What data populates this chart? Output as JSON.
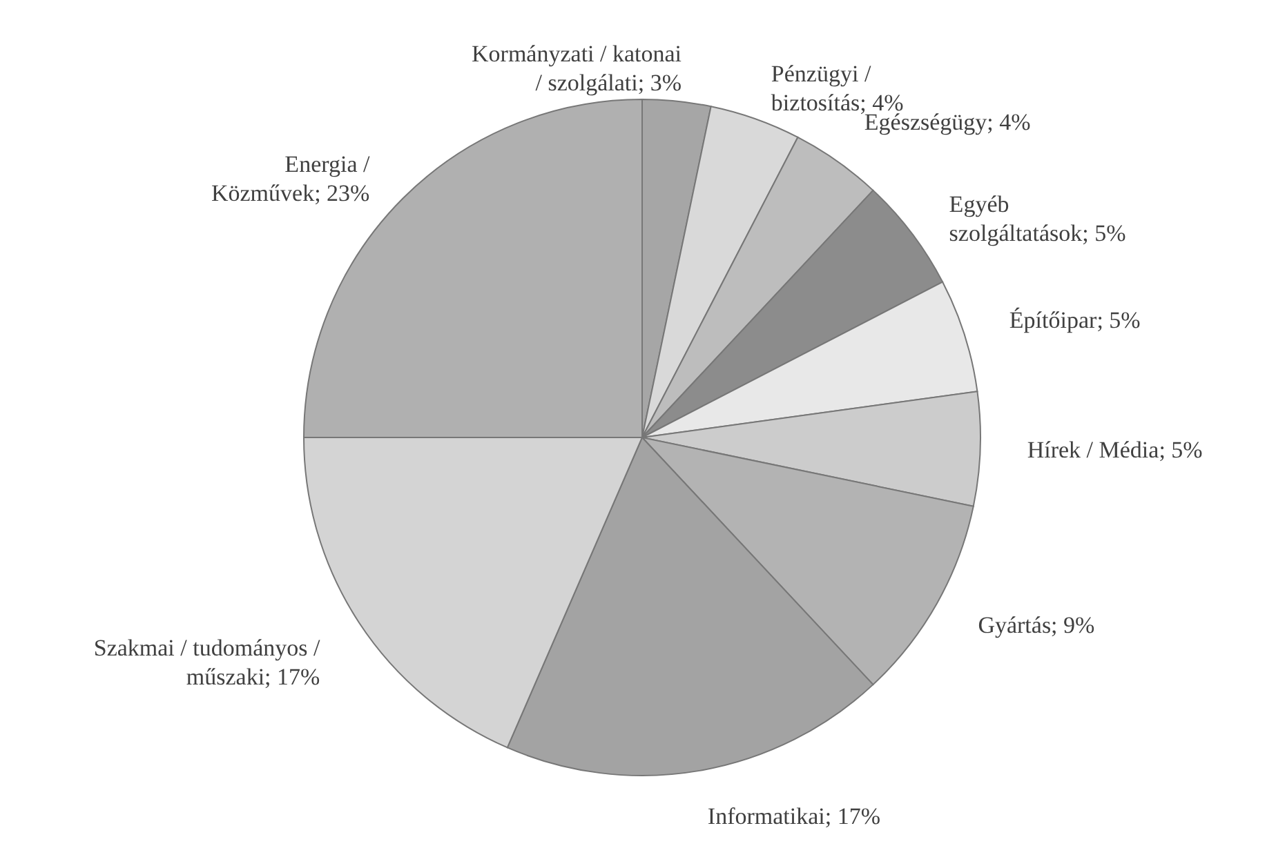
{
  "chart_data": {
    "type": "pie",
    "categories": [
      "Kormányzati / katonai / szolgálati",
      "Pénzügyi / biztosítás",
      "Egészségügy",
      "Egyéb szolgáltatások",
      "Építőipar",
      "Hírek / Média",
      "Gyártás",
      "Informatikai",
      "Szakmai / tudományos / műszaki",
      "Energia / Közművek"
    ],
    "values": [
      3,
      4,
      4,
      5,
      5,
      5,
      9,
      17,
      17,
      23
    ],
    "value_labels": [
      "3%",
      "4%",
      "4%",
      "5%",
      "5%",
      "5%",
      "9%",
      "17%",
      "17%",
      "23%"
    ],
    "colors": [
      "#a6a6a6",
      "#d9d9d9",
      "#bdbdbd",
      "#8c8c8c",
      "#e8e8e8",
      "#cccccc",
      "#b3b3b3",
      "#a3a3a3",
      "#d4d4d4",
      "#b0b0b0"
    ]
  }
}
